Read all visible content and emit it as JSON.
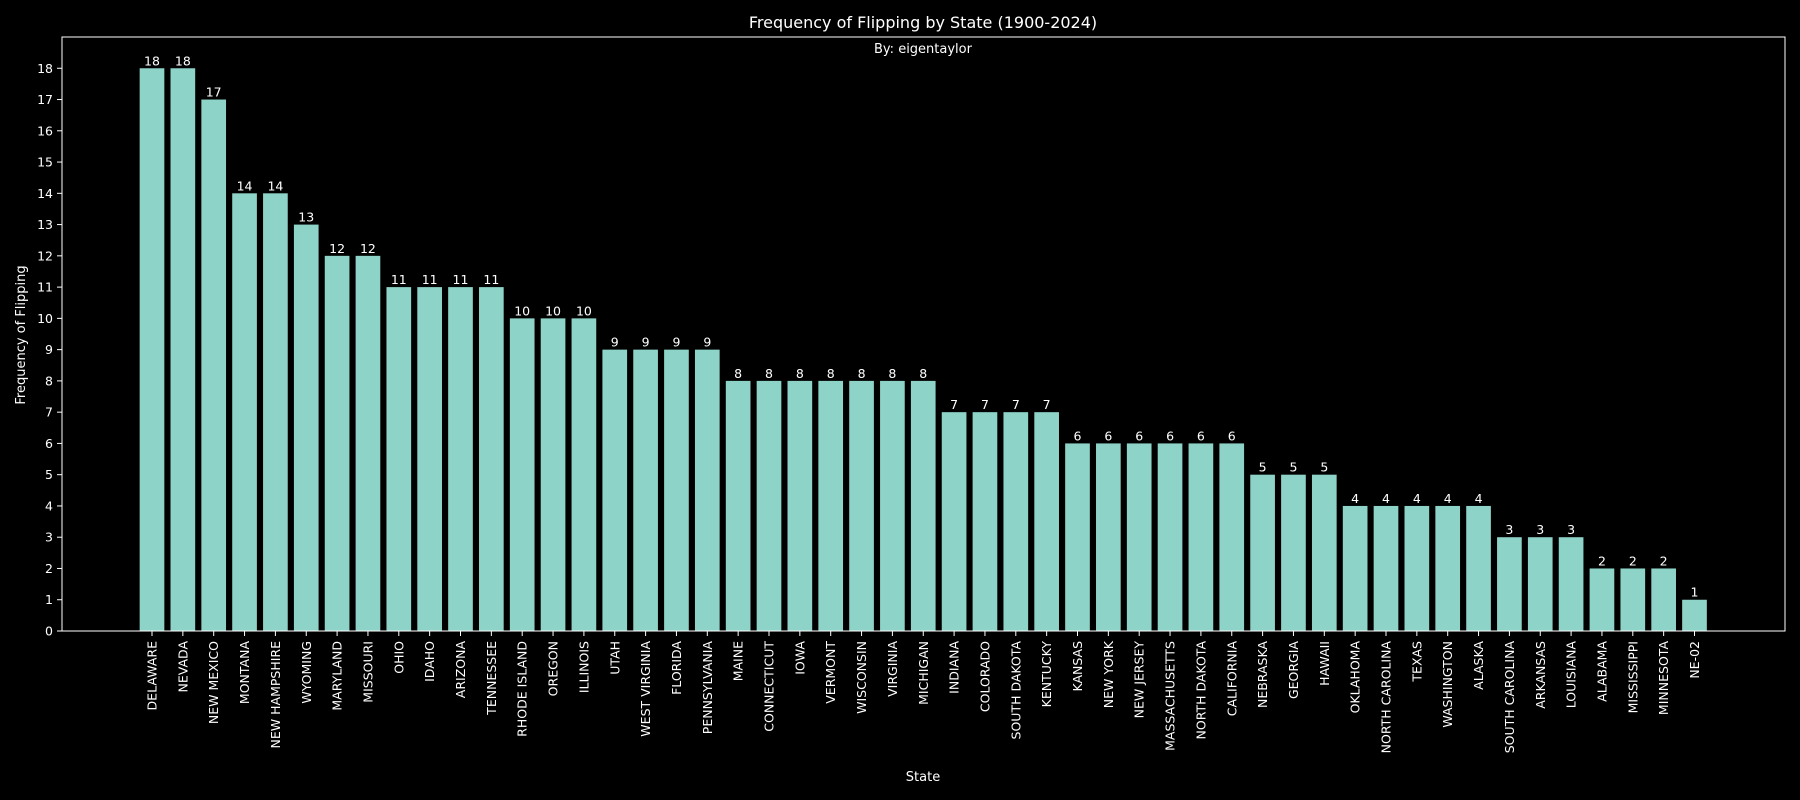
{
  "chart_data": {
    "type": "bar",
    "title": "Frequency of Flipping by State (1900-2024)",
    "subtitle": "By: eigentaylor",
    "xlabel": "State",
    "ylabel": "Frequency of Flipping",
    "ylim": [
      0,
      19
    ],
    "yticks": [
      0,
      1,
      2,
      3,
      4,
      5,
      6,
      7,
      8,
      9,
      10,
      11,
      12,
      13,
      14,
      15,
      16,
      17,
      18
    ],
    "grid": false,
    "legend": "none",
    "colors": {
      "background": "#000000",
      "bar": "#8dd3c7",
      "text": "#ffffff",
      "axis": "#ffffff"
    },
    "categories": [
      "DELAWARE",
      "NEVADA",
      "NEW MEXICO",
      "MONTANA",
      "NEW HAMPSHIRE",
      "WYOMING",
      "MARYLAND",
      "MISSOURI",
      "OHIO",
      "IDAHO",
      "ARIZONA",
      "TENNESSEE",
      "RHODE ISLAND",
      "OREGON",
      "ILLINOIS",
      "UTAH",
      "WEST VIRGINIA",
      "FLORIDA",
      "PENNSYLVANIA",
      "MAINE",
      "CONNECTICUT",
      "IOWA",
      "VERMONT",
      "WISCONSIN",
      "VIRGINIA",
      "MICHIGAN",
      "INDIANA",
      "COLORADO",
      "SOUTH DAKOTA",
      "KENTUCKY",
      "KANSAS",
      "NEW YORK",
      "NEW JERSEY",
      "MASSACHUSETTS",
      "NORTH DAKOTA",
      "CALIFORNIA",
      "NEBRASKA",
      "GEORGIA",
      "HAWAII",
      "OKLAHOMA",
      "NORTH CAROLINA",
      "TEXAS",
      "WASHINGTON",
      "ALASKA",
      "SOUTH CAROLINA",
      "ARKANSAS",
      "LOUISIANA",
      "ALABAMA",
      "MISSISSIPPI",
      "MINNESOTA",
      "NE-02"
    ],
    "values": [
      18,
      18,
      17,
      14,
      14,
      13,
      12,
      12,
      11,
      11,
      11,
      11,
      10,
      10,
      10,
      9,
      9,
      9,
      9,
      8,
      8,
      8,
      8,
      8,
      8,
      8,
      7,
      7,
      7,
      7,
      6,
      6,
      6,
      6,
      6,
      6,
      5,
      5,
      5,
      4,
      4,
      4,
      4,
      4,
      3,
      3,
      3,
      2,
      2,
      2,
      1
    ]
  }
}
